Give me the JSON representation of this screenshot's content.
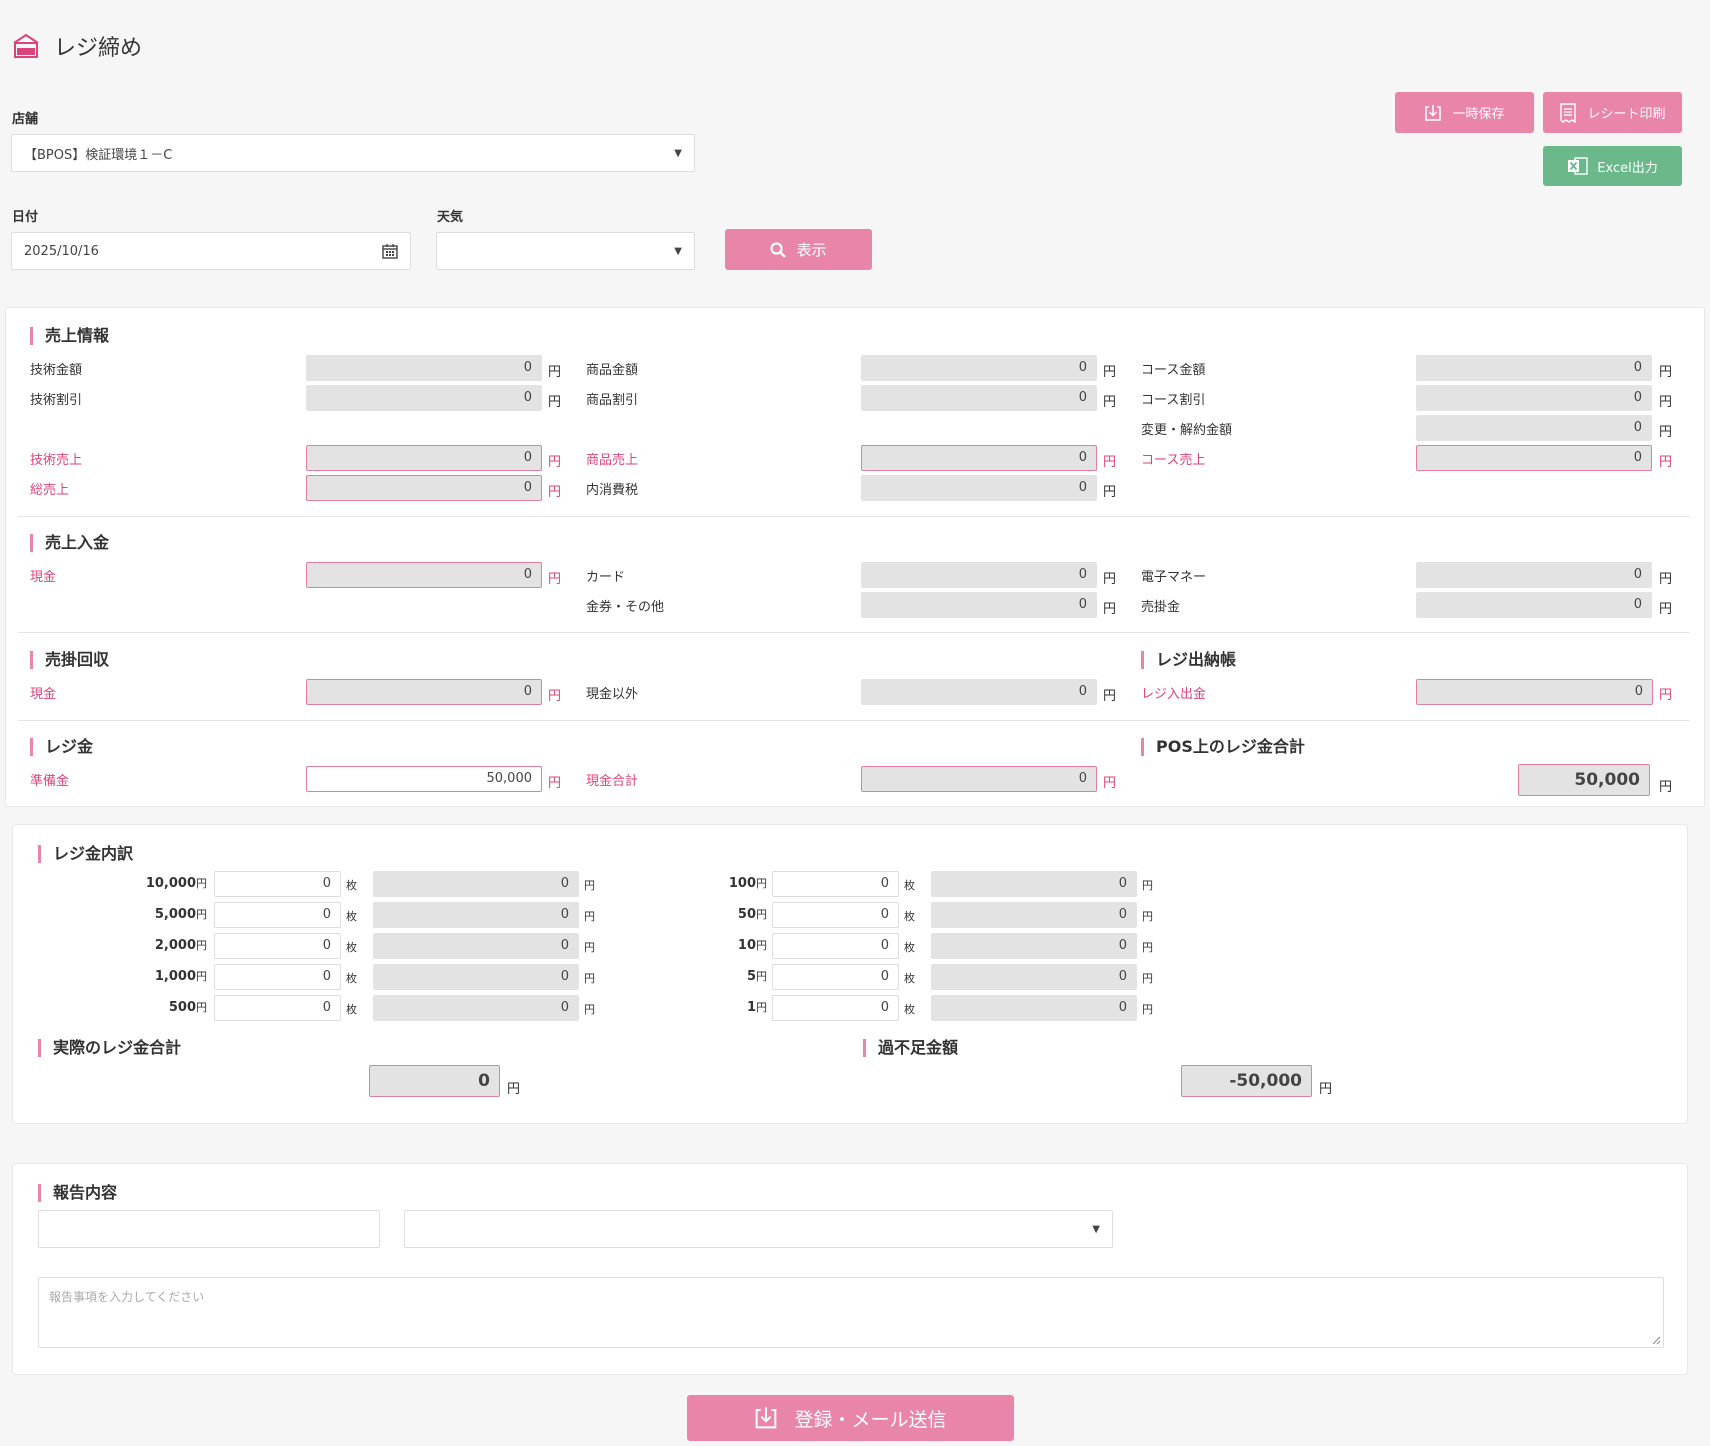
{
  "page": {
    "title": "レジ締め"
  },
  "store": {
    "label": "店舗",
    "value": "【BPOS】検証環境１－C"
  },
  "date": {
    "label": "日付",
    "value": "2025/10/16"
  },
  "weather": {
    "label": "天気",
    "value": ""
  },
  "buttons": {
    "show": "表示",
    "temp_save": "一時保存",
    "receipt_print": "レシート印刷",
    "excel": "Excel出力",
    "submit": "登録・メール送信"
  },
  "unit": "円",
  "sales_info": {
    "title": "売上情報",
    "fields": [
      {
        "label": "技術金額",
        "value": "0",
        "pink": false
      },
      {
        "label": "商品金額",
        "value": "0",
        "pink": false
      },
      {
        "label": "コース金額",
        "value": "0",
        "pink": false
      },
      {
        "label": "技術割引",
        "value": "0",
        "pink": false
      },
      {
        "label": "商品割引",
        "value": "0",
        "pink": false
      },
      {
        "label": "コース割引",
        "value": "0",
        "pink": false
      },
      {
        "label": "変更・解約金額",
        "value": "0",
        "pink": false
      },
      {
        "label": "技術売上",
        "value": "0",
        "pink": true
      },
      {
        "label": "商品売上",
        "value": "0",
        "pink": true
      },
      {
        "label": "コース売上",
        "value": "0",
        "pink": true
      },
      {
        "label": "総売上",
        "value": "0",
        "pink": true
      },
      {
        "label": "内消費税",
        "value": "0",
        "pink": false
      }
    ]
  },
  "sales_payment": {
    "title": "売上入金",
    "fields": [
      {
        "label": "現金",
        "value": "0",
        "pink": true
      },
      {
        "label": "カード",
        "value": "0",
        "pink": false
      },
      {
        "label": "電子マネー",
        "value": "0",
        "pink": false
      },
      {
        "label": "金券・その他",
        "value": "0",
        "pink": false
      },
      {
        "label": "売掛金",
        "value": "0",
        "pink": false
      }
    ]
  },
  "receivable": {
    "title": "売掛回収",
    "fields": [
      {
        "label": "現金",
        "value": "0",
        "pink": true
      },
      {
        "label": "現金以外",
        "value": "0",
        "pink": false
      }
    ]
  },
  "cashbook": {
    "title": "レジ出納帳",
    "field": {
      "label": "レジ入出金",
      "value": "0"
    }
  },
  "register": {
    "title": "レジ金",
    "fields": [
      {
        "label": "準備金",
        "value": "50,000"
      },
      {
        "label": "現金合計",
        "value": "0"
      }
    ]
  },
  "pos_total": {
    "title": "POS上のレジ金合計",
    "value": "50,000"
  },
  "breakdown": {
    "title": "レジ金内訳",
    "count_unit": "枚",
    "left": [
      {
        "denom": "10,000",
        "count": "0",
        "amount": "0"
      },
      {
        "denom": "5,000",
        "count": "0",
        "amount": "0"
      },
      {
        "denom": "2,000",
        "count": "0",
        "amount": "0"
      },
      {
        "denom": "1,000",
        "count": "0",
        "amount": "0"
      },
      {
        "denom": "500",
        "count": "0",
        "amount": "0"
      }
    ],
    "right": [
      {
        "denom": "100",
        "count": "0",
        "amount": "0"
      },
      {
        "denom": "50",
        "count": "0",
        "amount": "0"
      },
      {
        "denom": "10",
        "count": "0",
        "amount": "0"
      },
      {
        "denom": "5",
        "count": "0",
        "amount": "0"
      },
      {
        "denom": "1",
        "count": "0",
        "amount": "0"
      }
    ]
  },
  "actual_total": {
    "title": "実際のレジ金合計",
    "value": "0"
  },
  "difference": {
    "title": "過不足金額",
    "value": "-50,000"
  },
  "report": {
    "title": "報告内容",
    "input1": "",
    "select": "",
    "textarea_placeholder": "報告事項を入力してください"
  },
  "colors": {
    "accent": "#e885a8",
    "pink_text": "#d9457a",
    "excel": "#6bb88a"
  }
}
